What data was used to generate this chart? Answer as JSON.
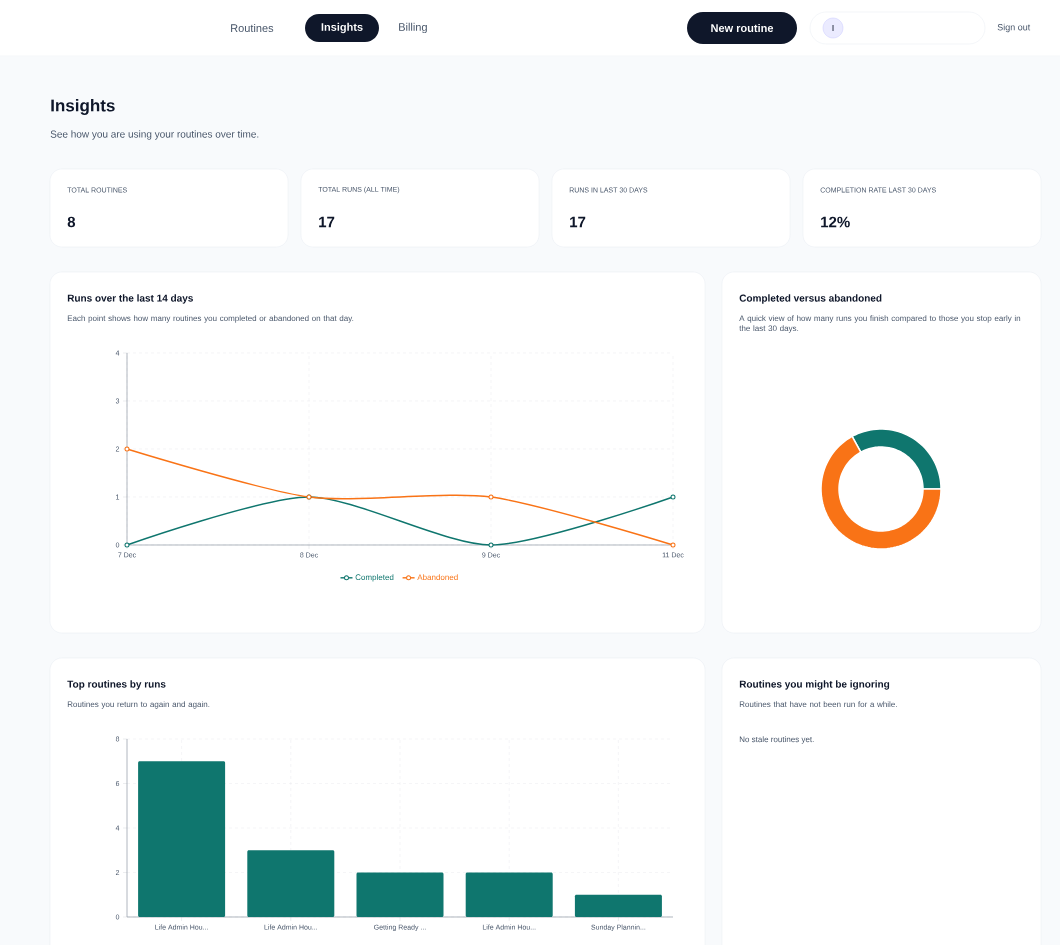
{
  "chart_data": [
    {
      "type": "other",
      "title": "Insights",
      "subtitle": "See how you are using your routines over time.",
      "annotations": [
        "Routines",
        "Insights",
        "Billing",
        "New routine",
        "I",
        "Sign out",
        "TOTAL ROUTINES",
        "8",
        "TOTAL RUNS (ALL TIME)",
        "17",
        "RUNS IN LAST 30 DAYS",
        "17",
        "COMPLETION RATE LAST 30 DAYS",
        "12%"
      ]
    },
    {
      "type": "line",
      "title": "Runs over the last 14 days",
      "subtitle": "Each point shows how many routines you completed or abandoned on that day.",
      "categories": [
        "7 Dec",
        "8 Dec",
        "9 Dec",
        "11 Dec"
      ],
      "series": [
        {
          "name": "Completed",
          "color": "#0f766e",
          "values": [
            0,
            1,
            0,
            1
          ]
        },
        {
          "name": "Abandoned",
          "color": "#f97316",
          "values": [
            2,
            1,
            1,
            0
          ]
        }
      ],
      "ylim": [
        0,
        4
      ],
      "yticks": [
        0,
        1,
        2,
        3,
        4
      ],
      "grid": true,
      "legend": "bottom",
      "marker": "circle"
    },
    {
      "type": "donut",
      "title": "Completed versus abandoned",
      "subtitle": "A quick view of how many runs you finish compared to those you stop early in the last 30 days.",
      "categories": [
        null,
        null
      ],
      "values": [
        33,
        67
      ],
      "colors": [
        "#0f766e",
        "#f97316"
      ]
    },
    {
      "type": "bar",
      "title": "Top routines by runs",
      "subtitle": "Routines you return to again and again.",
      "categories": [
        "Life Admin Hou...",
        "Life Admin Hou...",
        "Getting Ready ...",
        "Life Admin Hou...",
        "Sunday Plannin..."
      ],
      "values": [
        7,
        3,
        2,
        2,
        1
      ],
      "color": "#0f766e",
      "ylim": [
        0,
        8
      ],
      "yticks": [
        0,
        2,
        4,
        6,
        8
      ],
      "grid": true
    },
    {
      "type": "other",
      "title": "Routines you might be ignoring",
      "subtitle": "Routines that have not been run for a while.",
      "annotations": [
        "No stale routines yet."
      ]
    }
  ]
}
